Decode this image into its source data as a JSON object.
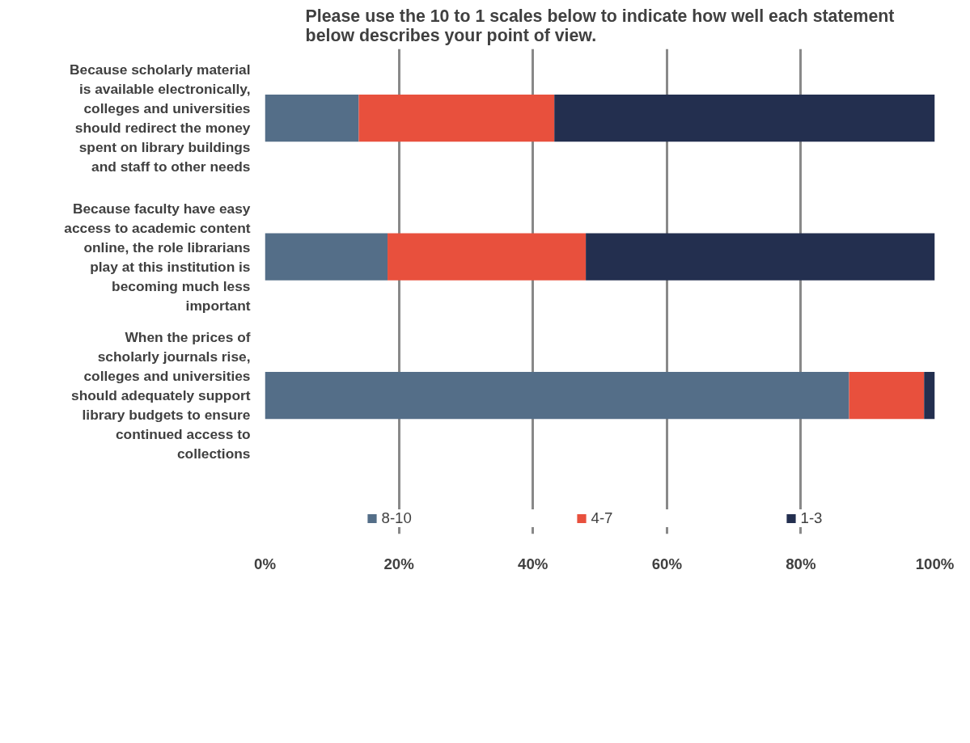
{
  "chart_data": {
    "type": "bar",
    "orientation": "horizontal",
    "stacked": true,
    "title": "Please use the 10 to 1 scales below to indicate how well each statement\nbelow describes your point of view.",
    "categories": [
      "Because scholarly material\nis available electronically,\ncolleges and universities\nshould redirect the money\nspent on library buildings\nand staff to other needs",
      "Because faculty have easy\naccess to academic content\nonline, the role librarians\nplay at this institution is\nbecoming much less\nimportant",
      "When the prices of\nscholarly journals rise,\ncolleges and universities\nshould adequately support\nlibrary budgets to ensure\ncontinued access to\ncollections"
    ],
    "series": [
      {
        "name": "8-10",
        "color": "#546e88",
        "values": [
          14.0,
          18.3,
          87.2
        ]
      },
      {
        "name": "4-7",
        "color": "#e8503d",
        "values": [
          29.2,
          29.6,
          11.2
        ]
      },
      {
        "name": "1-3",
        "color": "#232f4f",
        "values": [
          56.8,
          52.1,
          1.6
        ]
      }
    ],
    "xlim": [
      0,
      100
    ],
    "xticks": [
      {
        "value": 0,
        "label": "0%"
      },
      {
        "value": 20,
        "label": "20%"
      },
      {
        "value": 40,
        "label": "40%"
      },
      {
        "value": 60,
        "label": "60%"
      },
      {
        "value": 80,
        "label": "80%"
      },
      {
        "value": 100,
        "label": "100%"
      }
    ],
    "grid": "x",
    "legend": "bottom"
  }
}
